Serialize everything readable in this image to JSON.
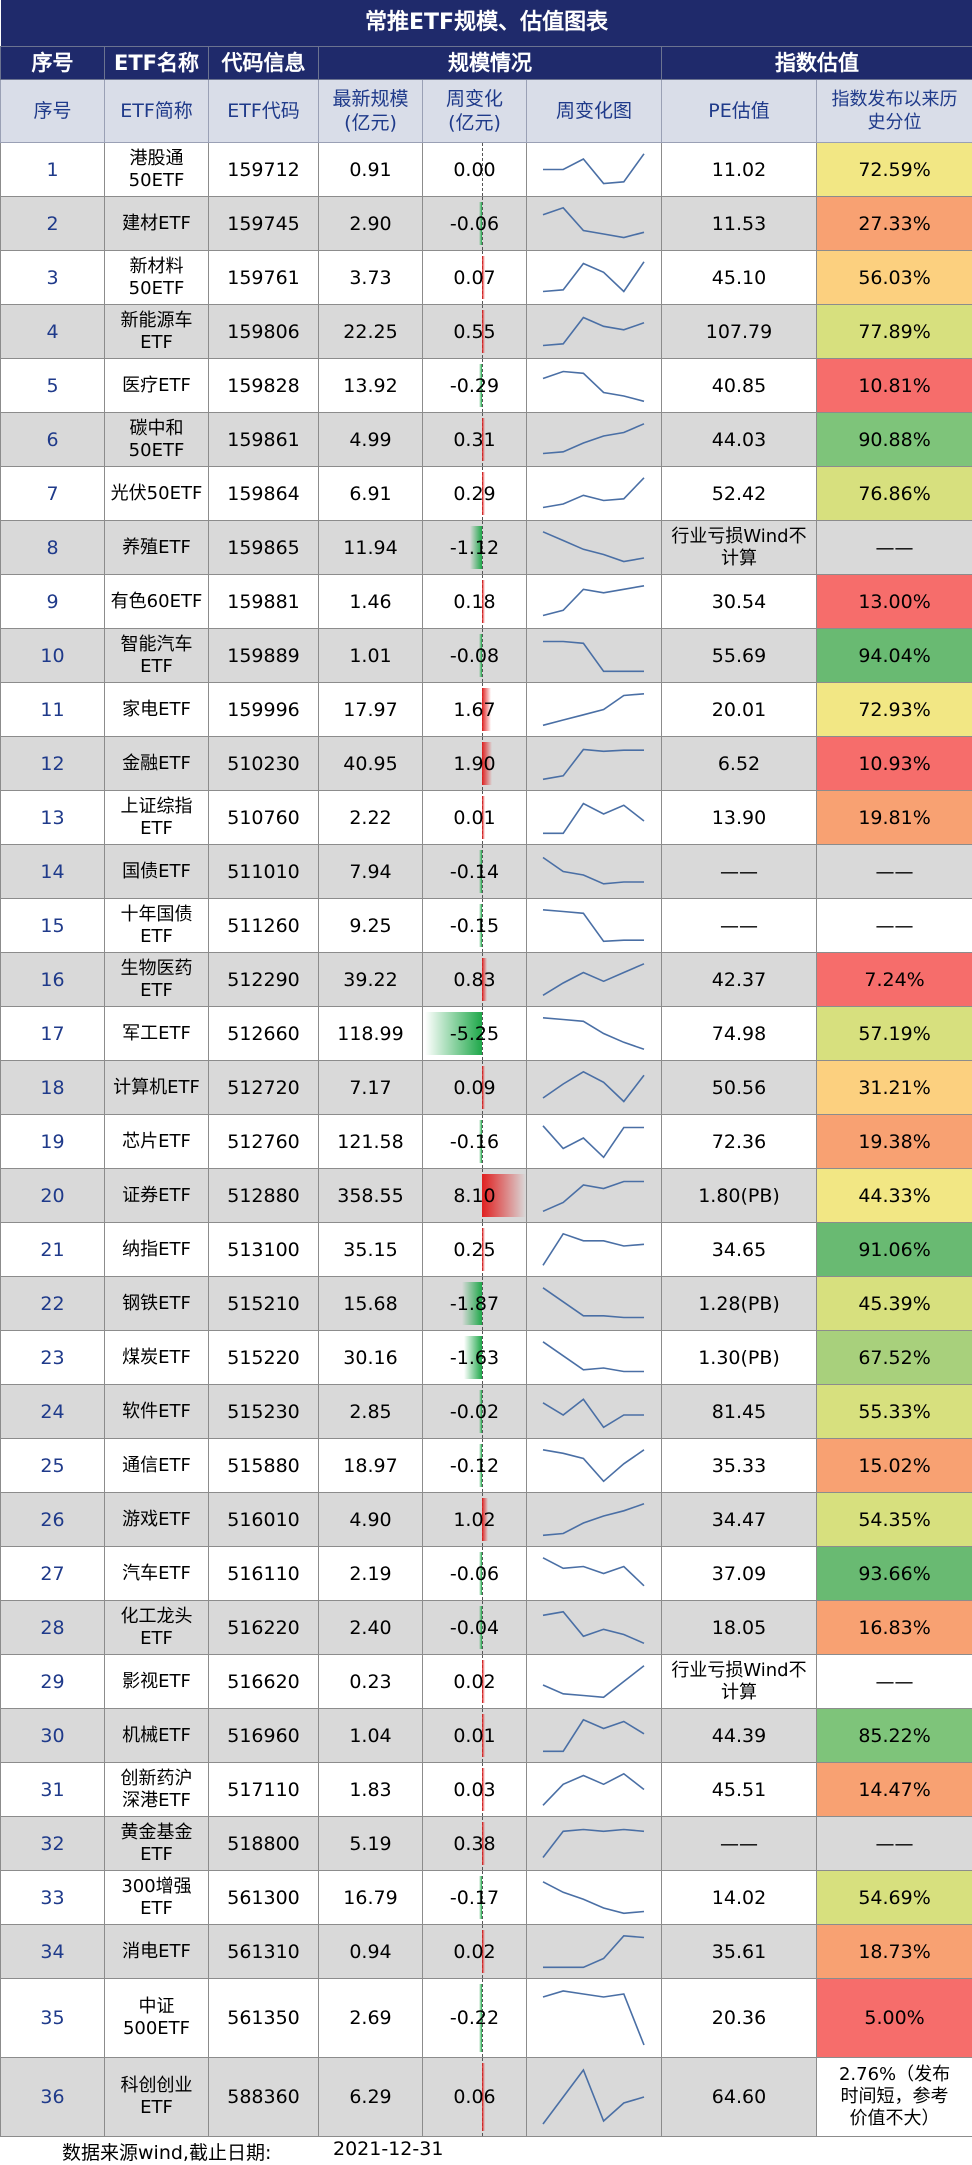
{
  "title": "常推ETF规模、估值图表",
  "header1": {
    "seq": "序号",
    "name": "ETF名称",
    "code": "代码信息",
    "scale": "规模情况",
    "valuation": "指数估值"
  },
  "header2": {
    "seq": "序号",
    "name": "ETF简称",
    "code": "ETF代码",
    "latest": "最新规模\n(亿元)",
    "weekly": "周变化\n(亿元)",
    "chart": "周变化图",
    "pe": "PE估值",
    "pct": "指数发布以来历\n史分位"
  },
  "colors": {
    "header_bg": "#1f2a6b",
    "subheader_bg": "#d9dde8",
    "row_grey": "#d9d9d9",
    "bar_positive": "#e02020",
    "bar_negative": "#1fa84a",
    "sparkline": "#4a6fa5"
  },
  "rows": [
    {
      "seq": "1",
      "name": "港股通\n50ETF",
      "code": "159712",
      "latest": "0.91",
      "weekly": "0.00",
      "wv": 0.0,
      "pe": "11.02",
      "pct": "72.59%",
      "pct_color": "#f2e784",
      "spark": [
        0.5,
        0.5,
        0.2,
        0.9,
        0.85,
        0.05
      ]
    },
    {
      "seq": "2",
      "name": "建材ETF",
      "code": "159745",
      "latest": "2.90",
      "weekly": "-0.06",
      "wv": -0.06,
      "pe": "11.53",
      "pct": "27.33%",
      "pct_color": "#f8a172",
      "spark": [
        0.25,
        0.05,
        0.7,
        0.8,
        0.9,
        0.75
      ]
    },
    {
      "seq": "3",
      "name": "新材料\n50ETF",
      "code": "159761",
      "latest": "3.73",
      "weekly": "0.07",
      "wv": 0.07,
      "pe": "45.10",
      "pct": "56.03%",
      "pct_color": "#fcd07f",
      "spark": [
        0.9,
        0.85,
        0.1,
        0.35,
        0.9,
        0.05
      ]
    },
    {
      "seq": "4",
      "name": "新能源车\nETF",
      "code": "159806",
      "latest": "22.25",
      "weekly": "0.55",
      "wv": 0.55,
      "pe": "107.79",
      "pct": "77.89%",
      "pct_color": "#d7e07e",
      "spark": [
        0.9,
        0.85,
        0.1,
        0.35,
        0.45,
        0.25
      ]
    },
    {
      "seq": "5",
      "name": "医疗ETF",
      "code": "159828",
      "latest": "13.92",
      "weekly": "-0.29",
      "wv": -0.29,
      "pe": "40.85",
      "pct": "10.81%",
      "pct_color": "#f66d6b",
      "spark": [
        0.3,
        0.1,
        0.15,
        0.7,
        0.8,
        0.95
      ]
    },
    {
      "seq": "6",
      "name": "碳中和\n50ETF",
      "code": "159861",
      "latest": "4.99",
      "weekly": "0.31",
      "wv": 0.31,
      "pe": "44.03",
      "pct": "90.88%",
      "pct_color": "#7ec47a",
      "spark": [
        0.9,
        0.85,
        0.6,
        0.4,
        0.3,
        0.05
      ]
    },
    {
      "seq": "7",
      "name": "光伏50ETF",
      "code": "159864",
      "latest": "6.91",
      "weekly": "0.29",
      "wv": 0.29,
      "pe": "52.42",
      "pct": "76.86%",
      "pct_color": "#d7e07e",
      "spark": [
        0.9,
        0.8,
        0.55,
        0.7,
        0.65,
        0.05
      ]
    },
    {
      "seq": "8",
      "name": "养殖ETF",
      "code": "159865",
      "latest": "11.94",
      "weekly": "-1.12",
      "wv": -1.12,
      "pe": "行业亏损Wind不\n计算",
      "pct": "——",
      "pct_color": "#d9d9d9",
      "spark": [
        0.05,
        0.3,
        0.55,
        0.7,
        0.9,
        0.8
      ]
    },
    {
      "seq": "9",
      "name": "有色60ETF",
      "code": "159881",
      "latest": "1.46",
      "weekly": "0.18",
      "wv": 0.18,
      "pe": "30.54",
      "pct": "13.00%",
      "pct_color": "#f66d6b",
      "spark": [
        0.9,
        0.75,
        0.15,
        0.25,
        0.15,
        0.05
      ]
    },
    {
      "seq": "10",
      "name": "智能汽车\nETF",
      "code": "159889",
      "latest": "1.01",
      "weekly": "-0.08",
      "wv": -0.08,
      "pe": "55.69",
      "pct": "94.04%",
      "pct_color": "#69ba72",
      "spark": [
        0.1,
        0.1,
        0.15,
        0.95,
        0.95,
        0.95
      ]
    },
    {
      "seq": "11",
      "name": "家电ETF",
      "code": "159996",
      "latest": "17.97",
      "weekly": "1.67",
      "wv": 1.67,
      "pe": "20.01",
      "pct": "72.93%",
      "pct_color": "#f2e784",
      "spark": [
        0.95,
        0.8,
        0.65,
        0.5,
        0.1,
        0.05
      ]
    },
    {
      "seq": "12",
      "name": "金融ETF",
      "code": "510230",
      "latest": "40.95",
      "weekly": "1.90",
      "wv": 1.9,
      "pe": "6.52",
      "pct": "10.93%",
      "pct_color": "#f66d6b",
      "spark": [
        0.95,
        0.85,
        0.1,
        0.15,
        0.12,
        0.12
      ]
    },
    {
      "seq": "13",
      "name": "上证综指\nETF",
      "code": "510760",
      "latest": "2.22",
      "weekly": "0.01",
      "wv": 0.01,
      "pe": "13.90",
      "pct": "19.81%",
      "pct_color": "#f8a172",
      "spark": [
        0.95,
        0.95,
        0.1,
        0.4,
        0.15,
        0.6
      ]
    },
    {
      "seq": "14",
      "name": "国债ETF",
      "code": "511010",
      "latest": "7.94",
      "weekly": "-0.14",
      "wv": -0.14,
      "pe": "——",
      "pct": "——",
      "pct_color": "#d9d9d9",
      "spark": [
        0.1,
        0.5,
        0.6,
        0.85,
        0.8,
        0.8
      ]
    },
    {
      "seq": "15",
      "name": "十年国债\nETF",
      "code": "511260",
      "latest": "9.25",
      "weekly": "-0.15",
      "wv": -0.15,
      "pe": "——",
      "pct": "——",
      "pct_color": "#ffffff",
      "spark": [
        0.05,
        0.1,
        0.15,
        0.95,
        0.92,
        0.92
      ]
    },
    {
      "seq": "16",
      "name": "生物医药\nETF",
      "code": "512290",
      "latest": "39.22",
      "weekly": "0.83",
      "wv": 0.83,
      "pe": "42.37",
      "pct": "7.24%",
      "pct_color": "#f66d6b",
      "spark": [
        0.95,
        0.6,
        0.3,
        0.55,
        0.3,
        0.05
      ]
    },
    {
      "seq": "17",
      "name": "军工ETF",
      "code": "512660",
      "latest": "118.99",
      "weekly": "-5.25",
      "wv": -5.25,
      "pe": "74.98",
      "pct": "57.19%",
      "pct_color": "#d7e07e",
      "spark": [
        0.05,
        0.1,
        0.15,
        0.5,
        0.75,
        0.95
      ]
    },
    {
      "seq": "18",
      "name": "计算机ETF",
      "code": "512720",
      "latest": "7.17",
      "weekly": "0.09",
      "wv": 0.09,
      "pe": "50.56",
      "pct": "31.21%",
      "pct_color": "#fcd07f",
      "spark": [
        0.8,
        0.4,
        0.05,
        0.35,
        0.9,
        0.15
      ]
    },
    {
      "seq": "19",
      "name": "芯片ETF",
      "code": "512760",
      "latest": "121.58",
      "weekly": "-0.16",
      "wv": -0.16,
      "pe": "72.36",
      "pct": "19.38%",
      "pct_color": "#f8a172",
      "spark": [
        0.05,
        0.7,
        0.4,
        0.95,
        0.1,
        0.1
      ]
    },
    {
      "seq": "20",
      "name": "证券ETF",
      "code": "512880",
      "latest": "358.55",
      "weekly": "8.10",
      "wv": 8.1,
      "pe": "1.80(PB)",
      "pct": "44.33%",
      "pct_color": "#f2e784",
      "spark": [
        0.95,
        0.7,
        0.2,
        0.3,
        0.1,
        0.1
      ]
    },
    {
      "seq": "21",
      "name": "纳指ETF",
      "code": "513100",
      "latest": "35.15",
      "weekly": "0.25",
      "wv": 0.25,
      "pe": "34.65",
      "pct": "91.06%",
      "pct_color": "#69ba72",
      "spark": [
        0.95,
        0.05,
        0.25,
        0.25,
        0.4,
        0.35
      ]
    },
    {
      "seq": "22",
      "name": "钢铁ETF",
      "code": "515210",
      "latest": "15.68",
      "weekly": "-1.87",
      "wv": -1.87,
      "pe": "1.28(PB)",
      "pct": "45.39%",
      "pct_color": "#d7e07e",
      "spark": [
        0.05,
        0.45,
        0.85,
        0.85,
        0.9,
        0.9
      ]
    },
    {
      "seq": "23",
      "name": "煤炭ETF",
      "code": "515220",
      "latest": "30.16",
      "weekly": "-1.63",
      "wv": -1.63,
      "pe": "1.30(PB)",
      "pct": "67.52%",
      "pct_color": "#a8d07c",
      "spark": [
        0.05,
        0.45,
        0.85,
        0.8,
        0.9,
        0.9
      ]
    },
    {
      "seq": "24",
      "name": "软件ETF",
      "code": "515230",
      "latest": "2.85",
      "weekly": "-0.02",
      "wv": -0.02,
      "pe": "81.45",
      "pct": "55.33%",
      "pct_color": "#d7e07e",
      "spark": [
        0.25,
        0.6,
        0.15,
        0.95,
        0.6,
        0.6
      ]
    },
    {
      "seq": "25",
      "name": "通信ETF",
      "code": "515880",
      "latest": "18.97",
      "weekly": "-0.12",
      "wv": -0.12,
      "pe": "35.33",
      "pct": "15.02%",
      "pct_color": "#f8a172",
      "spark": [
        0.05,
        0.15,
        0.3,
        0.95,
        0.45,
        0.05
      ]
    },
    {
      "seq": "26",
      "name": "游戏ETF",
      "code": "516010",
      "latest": "4.90",
      "weekly": "1.02",
      "wv": 1.02,
      "pe": "34.47",
      "pct": "54.35%",
      "pct_color": "#d7e07e",
      "spark": [
        0.95,
        0.9,
        0.6,
        0.4,
        0.25,
        0.05
      ]
    },
    {
      "seq": "27",
      "name": "汽车ETF",
      "code": "516110",
      "latest": "2.19",
      "weekly": "-0.06",
      "wv": -0.06,
      "pe": "37.09",
      "pct": "93.66%",
      "pct_color": "#69ba72",
      "spark": [
        0.05,
        0.35,
        0.3,
        0.5,
        0.3,
        0.85
      ]
    },
    {
      "seq": "28",
      "name": "化工龙头\nETF",
      "code": "516220",
      "latest": "2.40",
      "weekly": "-0.04",
      "wv": -0.04,
      "pe": "18.05",
      "pct": "16.83%",
      "pct_color": "#f8a172",
      "spark": [
        0.15,
        0.05,
        0.75,
        0.55,
        0.7,
        0.95
      ]
    },
    {
      "seq": "29",
      "name": "影视ETF",
      "code": "516620",
      "latest": "0.23",
      "weekly": "0.02",
      "wv": 0.02,
      "pe": "行业亏损Wind不\n计算",
      "pct": "——",
      "pct_color": "#ffffff",
      "spark": [
        0.6,
        0.85,
        0.9,
        0.95,
        0.5,
        0.05
      ]
    },
    {
      "seq": "30",
      "name": "机械ETF",
      "code": "516960",
      "latest": "1.04",
      "weekly": "0.01",
      "wv": 0.01,
      "pe": "44.39",
      "pct": "85.22%",
      "pct_color": "#7ec47a",
      "spark": [
        0.95,
        0.95,
        0.05,
        0.3,
        0.1,
        0.45
      ]
    },
    {
      "seq": "31",
      "name": "创新药沪\n深港ETF",
      "code": "517110",
      "latest": "1.83",
      "weekly": "0.03",
      "wv": 0.03,
      "pe": "45.51",
      "pct": "14.47%",
      "pct_color": "#f8a172",
      "spark": [
        0.95,
        0.35,
        0.1,
        0.35,
        0.05,
        0.5
      ]
    },
    {
      "seq": "32",
      "name": "黄金基金\nETF",
      "code": "518800",
      "latest": "5.19",
      "weekly": "0.38",
      "wv": 0.38,
      "pe": "——",
      "pct": "——",
      "pct_color": "#d9d9d9",
      "spark": [
        0.9,
        0.15,
        0.1,
        0.15,
        0.1,
        0.15
      ]
    },
    {
      "seq": "33",
      "name": "300增强\nETF",
      "code": "561300",
      "latest": "16.79",
      "weekly": "-0.17",
      "wv": -0.17,
      "pe": "14.02",
      "pct": "54.69%",
      "pct_color": "#d7e07e",
      "spark": [
        0.05,
        0.35,
        0.55,
        0.8,
        0.95,
        0.9
      ]
    },
    {
      "seq": "34",
      "name": "消电ETF",
      "code": "561310",
      "latest": "0.94",
      "weekly": "0.02",
      "wv": 0.02,
      "pe": "35.61",
      "pct": "18.73%",
      "pct_color": "#f8a172",
      "spark": [
        0.95,
        0.95,
        0.95,
        0.7,
        0.05,
        0.1
      ]
    },
    {
      "seq": "35",
      "name": "中证\n500ETF",
      "code": "561350",
      "latest": "2.69",
      "weekly": "-0.22",
      "wv": -0.22,
      "pe": "20.36",
      "pct": "5.00%",
      "pct_color": "#f66d6b",
      "spark": [
        0.15,
        0.05,
        0.1,
        0.15,
        0.1,
        0.95
      ]
    },
    {
      "seq": "36",
      "name": "科创创业\nETF",
      "code": "588360",
      "latest": "6.29",
      "weekly": "0.06",
      "wv": 0.06,
      "pe": "64.60",
      "pct": "2.76%（发布\n时间短，参考\n价值不大）",
      "pct_color": "#ffffff",
      "spark": [
        0.95,
        0.5,
        0.05,
        0.9,
        0.6,
        0.5
      ]
    }
  ],
  "footer": {
    "source": "数据来源wind,截止日期:",
    "date": "2021-12-31"
  }
}
